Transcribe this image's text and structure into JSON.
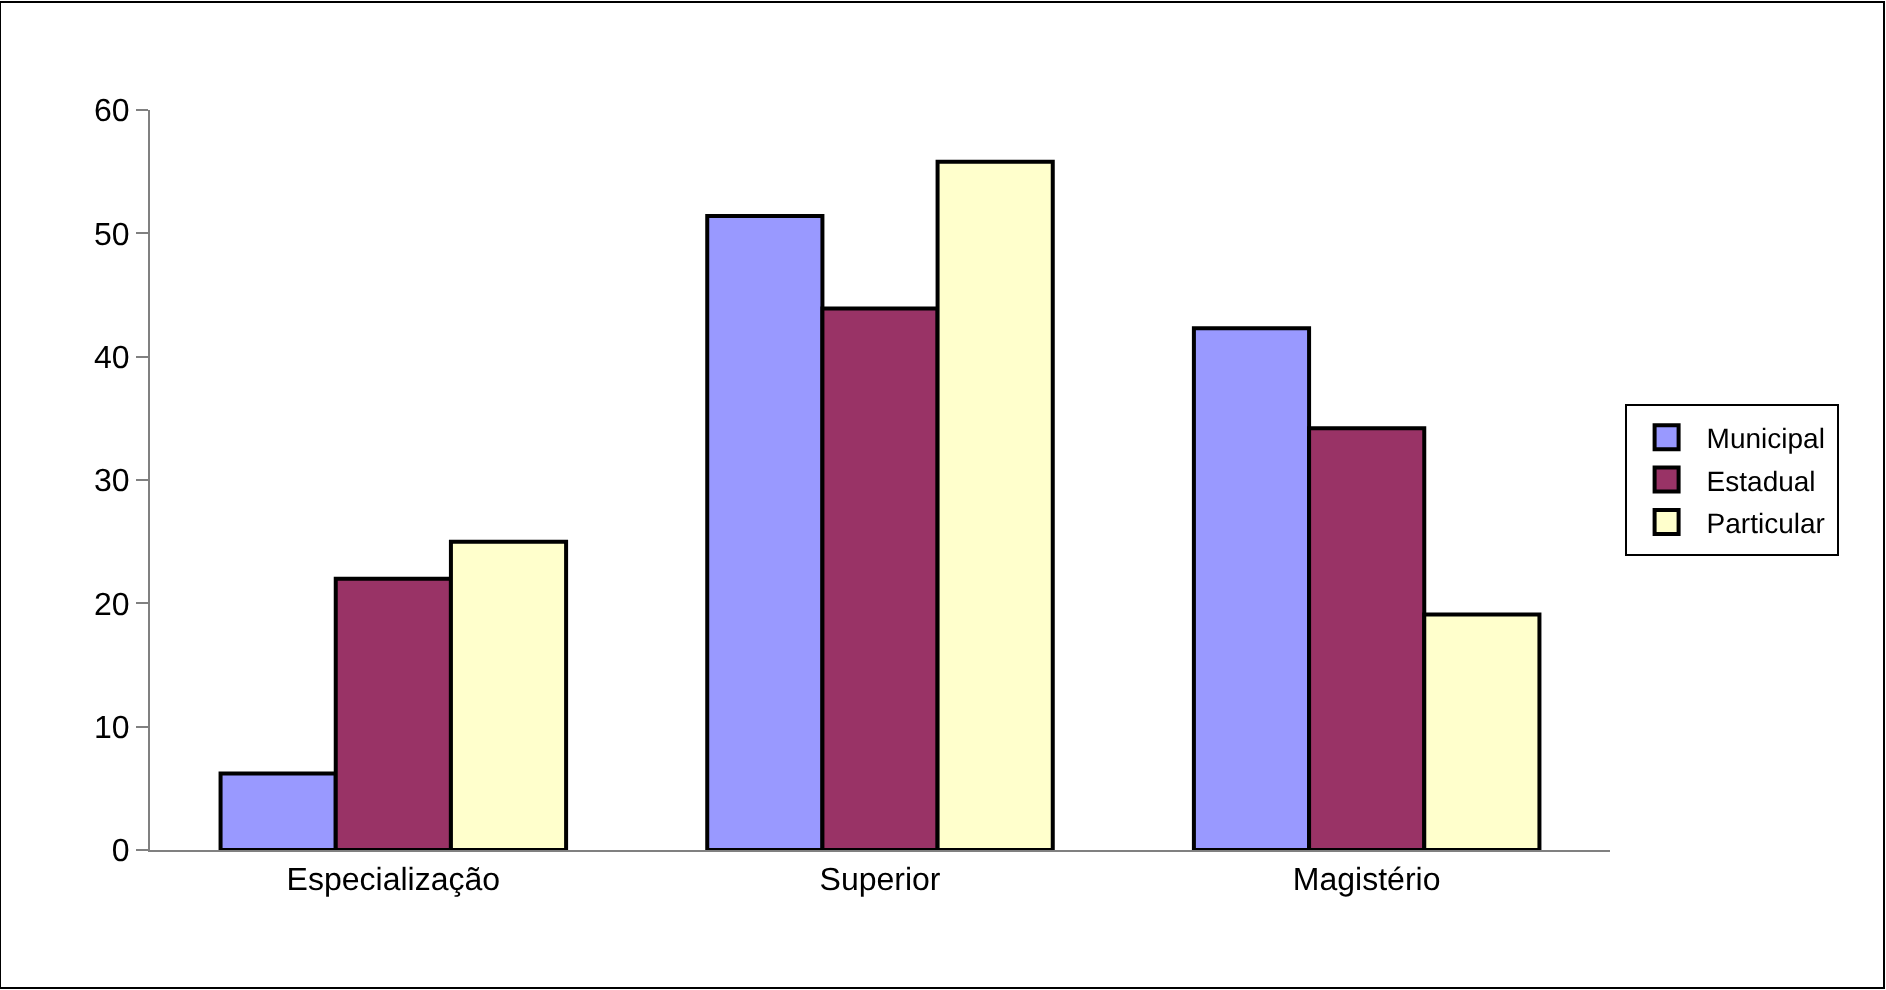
{
  "chart_data": {
    "type": "bar",
    "categories": [
      "Especialização",
      "Superior",
      "Magistério"
    ],
    "series": [
      {
        "name": "Municipal",
        "color": "#9999ff",
        "values": [
          6.2,
          51.4,
          42.3
        ]
      },
      {
        "name": "Estadual",
        "color": "#993366",
        "values": [
          22.0,
          43.9,
          34.2
        ]
      },
      {
        "name": "Particular",
        "color": "#ffffcc",
        "values": [
          25.0,
          55.8,
          19.1
        ]
      }
    ],
    "ylim": [
      0,
      60
    ],
    "yticks": [
      0,
      10,
      20,
      30,
      40,
      50,
      60
    ],
    "legend": "right"
  }
}
